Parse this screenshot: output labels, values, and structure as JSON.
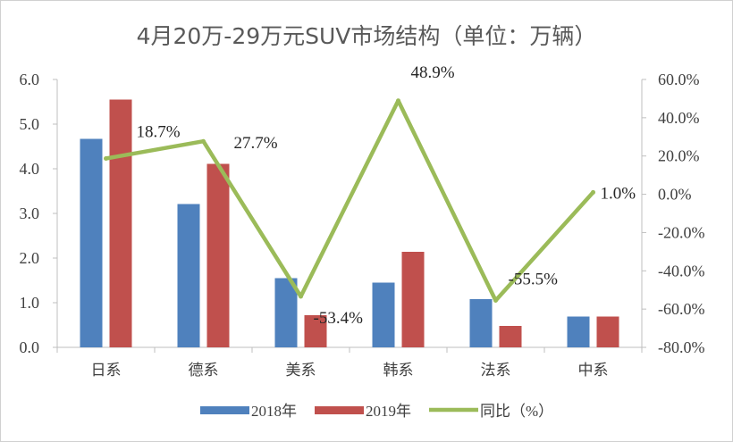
{
  "chart_data": {
    "type": "bar",
    "title": "4月20万-29万元SUV市场结构（单位：万辆）",
    "categories": [
      "日系",
      "德系",
      "美系",
      "韩系",
      "法系",
      "中系"
    ],
    "series": [
      {
        "name": "2018年",
        "type": "bar",
        "axis": "left",
        "color": "#4f81bd",
        "values": [
          4.67,
          3.21,
          1.55,
          1.45,
          1.08,
          0.69
        ]
      },
      {
        "name": "2019年",
        "type": "bar",
        "axis": "left",
        "color": "#c0504d",
        "values": [
          5.55,
          4.11,
          0.72,
          2.14,
          0.48,
          0.69
        ]
      },
      {
        "name": "同比（%）",
        "type": "line",
        "axis": "right",
        "color": "#9bbb59",
        "values": [
          18.7,
          27.7,
          -53.4,
          48.9,
          -55.5,
          1.0
        ],
        "data_labels": [
          "18.7%",
          "27.7%",
          "-53.4%",
          "48.9%",
          "-55.5%",
          "1.0%"
        ]
      }
    ],
    "y_left": {
      "ylim": [
        0,
        6
      ],
      "ticks": [
        "0.0",
        "1.0",
        "2.0",
        "3.0",
        "4.0",
        "5.0",
        "6.0"
      ]
    },
    "y_right": {
      "ylim": [
        -80,
        60
      ],
      "ticks": [
        "-80.0%",
        "-60.0%",
        "-40.0%",
        "-20.0%",
        "0.0%",
        "20.0%",
        "40.0%",
        "60.0%"
      ]
    },
    "grid": false,
    "legend_position": "bottom"
  }
}
